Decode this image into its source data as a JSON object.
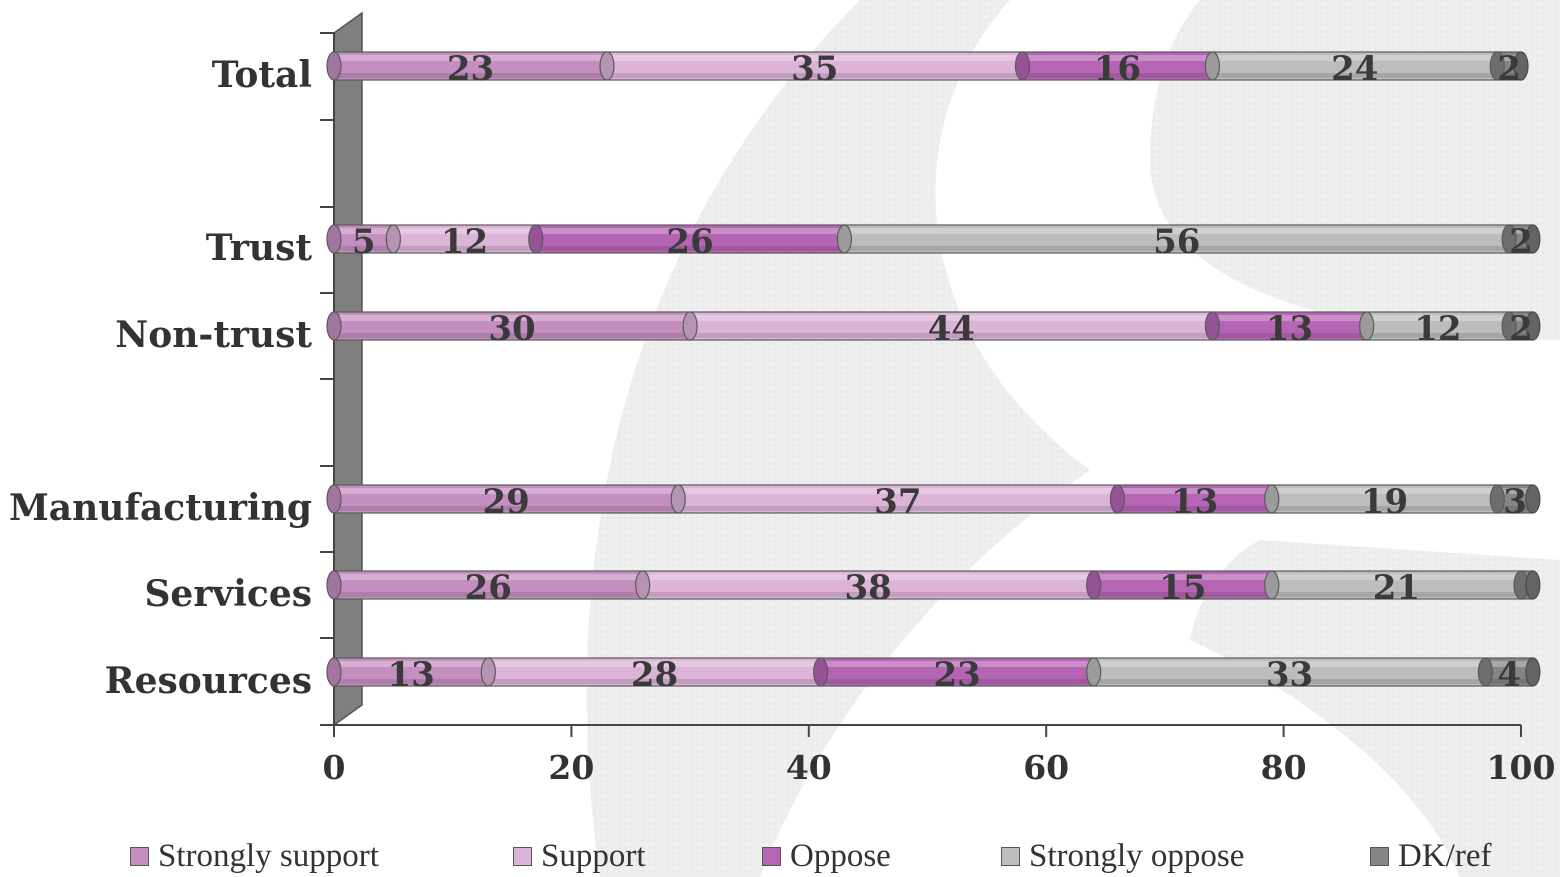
{
  "chart_data": {
    "type": "bar",
    "orientation": "horizontal",
    "stacked": true,
    "categories": [
      "Total",
      "Trust",
      "Non-trust",
      "Manufacturing",
      "Services",
      "Resources"
    ],
    "series": [
      {
        "name": "Strongly support",
        "values": [
          23,
          5,
          30,
          29,
          26,
          13
        ],
        "color": "#c48fc0"
      },
      {
        "name": "Support",
        "values": [
          35,
          12,
          44,
          37,
          38,
          28
        ],
        "color": "#dbb4d8"
      },
      {
        "name": "Oppose",
        "values": [
          16,
          26,
          13,
          13,
          15,
          23
        ],
        "color": "#b664b4"
      },
      {
        "name": "Strongly oppose",
        "values": [
          24,
          56,
          12,
          19,
          21,
          33
        ],
        "color": "#bdbdbd"
      },
      {
        "name": "DK/ref",
        "values": [
          2,
          2,
          2,
          3,
          1,
          4
        ],
        "color": "#858585"
      }
    ],
    "data_labels": [
      [
        "23",
        "35",
        "16",
        "24",
        "2"
      ],
      [
        "5",
        "12",
        "26",
        "56",
        "2"
      ],
      [
        "30",
        "44",
        "13",
        "12",
        "2"
      ],
      [
        "29",
        "37",
        "13",
        "19",
        "3"
      ],
      [
        "26",
        "38",
        "15",
        "21",
        ""
      ],
      [
        "13",
        "28",
        "23",
        "33",
        "4"
      ]
    ],
    "xlim": [
      0,
      100
    ],
    "xticks": [
      0,
      20,
      40,
      60,
      80,
      100
    ],
    "grid": false,
    "legend_position": "bottom",
    "title": "",
    "xlabel": "",
    "ylabel": ""
  }
}
